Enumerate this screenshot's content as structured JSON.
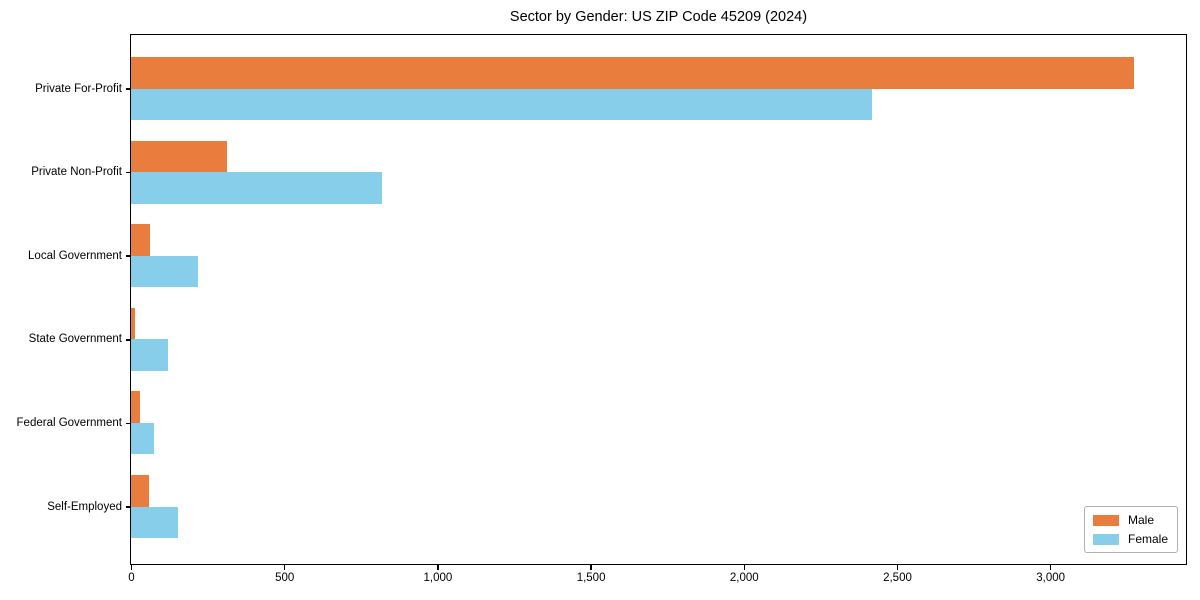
{
  "title": "Sector by Gender: US ZIP Code 45209 (2024)",
  "legend": {
    "position": "lower right",
    "items": [
      {
        "label": "Male",
        "color": "#e87d3e"
      },
      {
        "label": "Female",
        "color": "#87ceeb"
      }
    ]
  },
  "chart_data": {
    "type": "bar",
    "orientation": "horizontal",
    "title": "Sector by Gender: US ZIP Code 45209 (2024)",
    "categories": [
      "Private For-Profit",
      "Private Non-Profit",
      "Local Government",
      "State Government",
      "Federal Government",
      "Self-Employed"
    ],
    "series": [
      {
        "name": "Male",
        "color": "#e87d3e",
        "values": [
          3275,
          312,
          63,
          13,
          30,
          59
        ]
      },
      {
        "name": "Female",
        "color": "#87ceeb",
        "values": [
          2420,
          820,
          219,
          120,
          75,
          153
        ]
      }
    ],
    "xlabel": "",
    "ylabel": "",
    "xlim": [
      0,
      3440
    ],
    "xticks": [
      0,
      500,
      1000,
      1500,
      2000,
      2500,
      3000
    ],
    "xtick_labels": [
      "0",
      "500",
      "1,000",
      "1,500",
      "2,000",
      "2,500",
      "3,000"
    ],
    "grid": false,
    "legend_position": "lower right",
    "background": "#ffffff"
  }
}
